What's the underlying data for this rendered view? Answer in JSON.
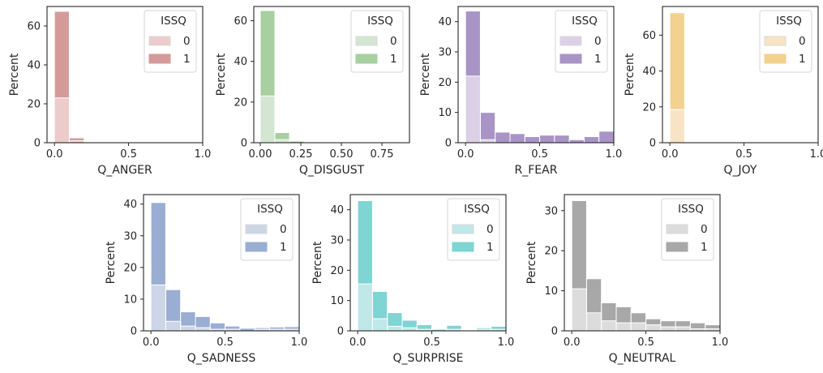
{
  "chart_data": [
    {
      "type": "bar",
      "title": "",
      "xlabel": "Q_ANGER",
      "ylabel": "Percent",
      "xlim": [
        -0.05,
        1.0
      ],
      "ylim": [
        0,
        70
      ],
      "xticks": [
        "0.0",
        "0.5",
        "1.0"
      ],
      "yticks": [
        "0",
        "20",
        "40",
        "60"
      ],
      "bin_edges": [
        0.0,
        0.1,
        0.2,
        0.3,
        0.4,
        0.5,
        0.6,
        0.7,
        0.8,
        0.9,
        1.0
      ],
      "legend": {
        "title": "ISSQ",
        "labels": [
          "0",
          "1"
        ],
        "position": "top-right"
      },
      "colors": {
        "0": "#eccbcb",
        "1": "#d49a9a"
      },
      "series": [
        {
          "name": "0",
          "values": [
            23,
            1,
            0,
            0,
            0,
            0,
            0,
            0,
            0,
            0
          ]
        },
        {
          "name": "1",
          "values": [
            67.5,
            2.5,
            0.4,
            0,
            0,
            0,
            0,
            0,
            0,
            0
          ]
        }
      ]
    },
    {
      "type": "bar",
      "title": "",
      "xlabel": "Q_DISGUST",
      "ylabel": "Percent",
      "xlim": [
        -0.04,
        0.92
      ],
      "ylim": [
        0,
        67
      ],
      "xticks": [
        "0.00",
        "0.25",
        "0.50",
        "0.75"
      ],
      "yticks": [
        "0",
        "20",
        "40",
        "60"
      ],
      "bin_edges": [
        0.0,
        0.09,
        0.18,
        0.27,
        0.36,
        0.45,
        0.54,
        0.63,
        0.72,
        0.81,
        0.9
      ],
      "legend": {
        "title": "ISSQ",
        "labels": [
          "0",
          "1"
        ],
        "position": "top-right"
      },
      "colors": {
        "0": "#d3e6d1",
        "1": "#a7cf9f"
      },
      "series": [
        {
          "name": "0",
          "values": [
            23,
            1.5,
            0,
            0,
            0,
            0,
            0,
            0,
            0,
            0
          ]
        },
        {
          "name": "1",
          "values": [
            65,
            5,
            0.8,
            0.3,
            0,
            0.3,
            0,
            0,
            0,
            0
          ]
        }
      ]
    },
    {
      "type": "bar",
      "title": "",
      "xlabel": "R_FEAR",
      "ylabel": "Percent",
      "xlim": [
        -0.05,
        1.0
      ],
      "ylim": [
        0,
        45
      ],
      "xticks": [
        "0.0",
        "0.5",
        "1.0"
      ],
      "yticks": [
        "0",
        "10",
        "20",
        "30",
        "40"
      ],
      "bin_edges": [
        0.0,
        0.1,
        0.2,
        0.3,
        0.4,
        0.5,
        0.6,
        0.7,
        0.8,
        0.9,
        1.0
      ],
      "legend": {
        "title": "ISSQ",
        "labels": [
          "0",
          "1"
        ],
        "position": "top-right"
      },
      "colors": {
        "0": "#dbd0e5",
        "1": "#a994c6"
      },
      "series": [
        {
          "name": "0",
          "values": [
            22,
            1,
            0,
            0,
            0,
            0,
            0,
            0,
            0,
            0
          ]
        },
        {
          "name": "1",
          "values": [
            43.5,
            10,
            3.5,
            3,
            2,
            2.5,
            2.5,
            1,
            2,
            3.8
          ]
        }
      ]
    },
    {
      "type": "bar",
      "title": "",
      "xlabel": "Q_JOY",
      "ylabel": "Percent",
      "xlim": [
        -0.05,
        1.0
      ],
      "ylim": [
        0,
        76
      ],
      "xticks": [
        "0.0",
        "0.5",
        "1.0"
      ],
      "yticks": [
        "0",
        "20",
        "40",
        "60"
      ],
      "bin_edges": [
        0.0,
        0.1,
        0.2,
        0.3,
        0.4,
        0.5,
        0.6,
        0.7,
        0.8,
        0.9,
        1.0
      ],
      "legend": {
        "title": "ISSQ",
        "labels": [
          "0",
          "1"
        ],
        "position": "top-right"
      },
      "colors": {
        "0": "#f8e4c4",
        "1": "#f3d18f"
      },
      "series": [
        {
          "name": "0",
          "values": [
            18.5,
            0,
            0,
            0,
            0,
            0,
            0,
            0,
            0,
            0
          ]
        },
        {
          "name": "1",
          "values": [
            72.5,
            0,
            0,
            0,
            0,
            0,
            0,
            0,
            0,
            0
          ]
        }
      ]
    },
    {
      "type": "bar",
      "title": "",
      "xlabel": "Q_SADNESS",
      "ylabel": "Percent",
      "xlim": [
        -0.05,
        1.0
      ],
      "ylim": [
        0,
        43
      ],
      "xticks": [
        "0.0",
        "0.5",
        "1.0"
      ],
      "yticks": [
        "0",
        "10",
        "20",
        "30",
        "40"
      ],
      "bin_edges": [
        0.0,
        0.1,
        0.2,
        0.3,
        0.4,
        0.5,
        0.6,
        0.7,
        0.8,
        0.9,
        1.0
      ],
      "legend": {
        "title": "ISSQ",
        "labels": [
          "0",
          "1"
        ],
        "position": "top-right"
      },
      "colors": {
        "0": "#cdd6e7",
        "1": "#9aaed4"
      },
      "series": [
        {
          "name": "0",
          "values": [
            14.5,
            3,
            1.5,
            1,
            0.5,
            0.5,
            0,
            0.5,
            0.5,
            0.5
          ]
        },
        {
          "name": "1",
          "values": [
            40.5,
            13,
            6,
            4.5,
            2.5,
            1.5,
            0.8,
            1,
            1.2,
            1.3
          ]
        }
      ]
    },
    {
      "type": "bar",
      "title": "",
      "xlabel": "Q_SURPRISE",
      "ylabel": "Percent",
      "xlim": [
        -0.05,
        1.0
      ],
      "ylim": [
        0,
        45
      ],
      "xticks": [
        "0.0",
        "0.5",
        "1.0"
      ],
      "yticks": [
        "0",
        "10",
        "20",
        "30",
        "40"
      ],
      "bin_edges": [
        0.0,
        0.1,
        0.2,
        0.3,
        0.4,
        0.5,
        0.6,
        0.7,
        0.8,
        0.9,
        1.0
      ],
      "legend": {
        "title": "ISSQ",
        "labels": [
          "0",
          "1"
        ],
        "position": "top-right"
      },
      "colors": {
        "0": "#bfe8e8",
        "1": "#7fd4d4"
      },
      "series": [
        {
          "name": "0",
          "values": [
            15.5,
            4,
            1.5,
            1,
            0.5,
            0,
            0.5,
            0,
            0.5,
            0.5
          ]
        },
        {
          "name": "1",
          "values": [
            43,
            13,
            6,
            3.5,
            2,
            0.5,
            1.8,
            0,
            1,
            1.5
          ]
        }
      ]
    },
    {
      "type": "bar",
      "title": "",
      "xlabel": "Q_NEUTRAL",
      "ylabel": "Percent",
      "xlim": [
        -0.05,
        1.0
      ],
      "ylim": [
        0,
        34
      ],
      "xticks": [
        "0.0",
        "0.5",
        "1.0"
      ],
      "yticks": [
        "0",
        "10",
        "20",
        "30"
      ],
      "bin_edges": [
        0.0,
        0.1,
        0.2,
        0.3,
        0.4,
        0.5,
        0.6,
        0.7,
        0.8,
        0.9,
        1.0
      ],
      "legend": {
        "title": "ISSQ",
        "labels": [
          "0",
          "1"
        ],
        "position": "top-right"
      },
      "colors": {
        "0": "#dcdcdc",
        "1": "#a8a8a8"
      },
      "series": [
        {
          "name": "0",
          "values": [
            10.5,
            4.5,
            2.5,
            2,
            2,
            1.5,
            1,
            1,
            0.5,
            0.5
          ]
        },
        {
          "name": "1",
          "values": [
            32.5,
            13,
            7,
            6,
            4.5,
            3,
            2.5,
            2.5,
            2,
            1.5
          ]
        }
      ]
    }
  ]
}
